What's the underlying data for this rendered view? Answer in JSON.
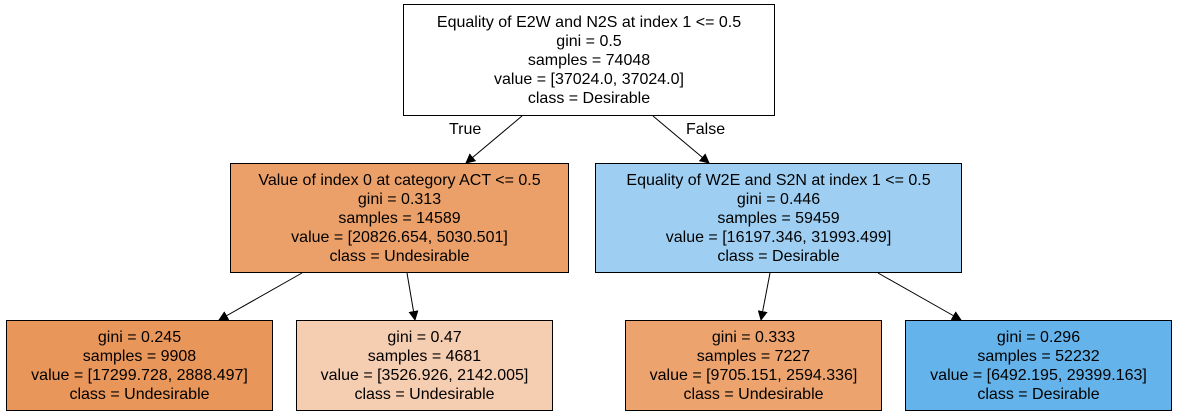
{
  "tree": {
    "edge_labels": {
      "true": "True",
      "false": "False"
    },
    "nodes": {
      "root": {
        "split": "Equality of E2W and N2S at index 1 <= 0.5",
        "gini": "gini = 0.5",
        "samples": "samples = 74048",
        "value": "value = [37024.0, 37024.0]",
        "class": "class = Desirable",
        "fill": "#ffffff"
      },
      "left": {
        "split": "Value of index 0 at category ACT <= 0.5",
        "gini": "gini = 0.313",
        "samples": "samples = 14589",
        "value": "value = [20826.654, 5030.501]",
        "class": "class = Undesirable",
        "fill": "#eba069"
      },
      "right": {
        "split": "Equality of W2E and S2N at index 1 <= 0.5",
        "gini": "gini = 0.446",
        "samples": "samples = 59459",
        "value": "value = [16197.346, 31993.499]",
        "class": "class = Desirable",
        "fill": "#9ecff2"
      },
      "left_left": {
        "gini": "gini = 0.245",
        "samples": "samples = 9908",
        "value": "value = [17299.728, 2888.497]",
        "class": "class = Undesirable",
        "fill": "#e9965a"
      },
      "left_right": {
        "gini": "gini = 0.47",
        "samples": "samples = 4681",
        "value": "value = [3526.926, 2142.005]",
        "class": "class = Undesirable",
        "fill": "#f5cdb1"
      },
      "right_left": {
        "gini": "gini = 0.333",
        "samples": "samples = 7227",
        "value": "value = [9705.151, 2594.336]",
        "class": "class = Undesirable",
        "fill": "#eca36e"
      },
      "right_right": {
        "gini": "gini = 0.296",
        "samples": "samples = 52232",
        "value": "value = [6492.195, 29399.163]",
        "class": "class = Desirable",
        "fill": "#65b3eb"
      }
    }
  }
}
